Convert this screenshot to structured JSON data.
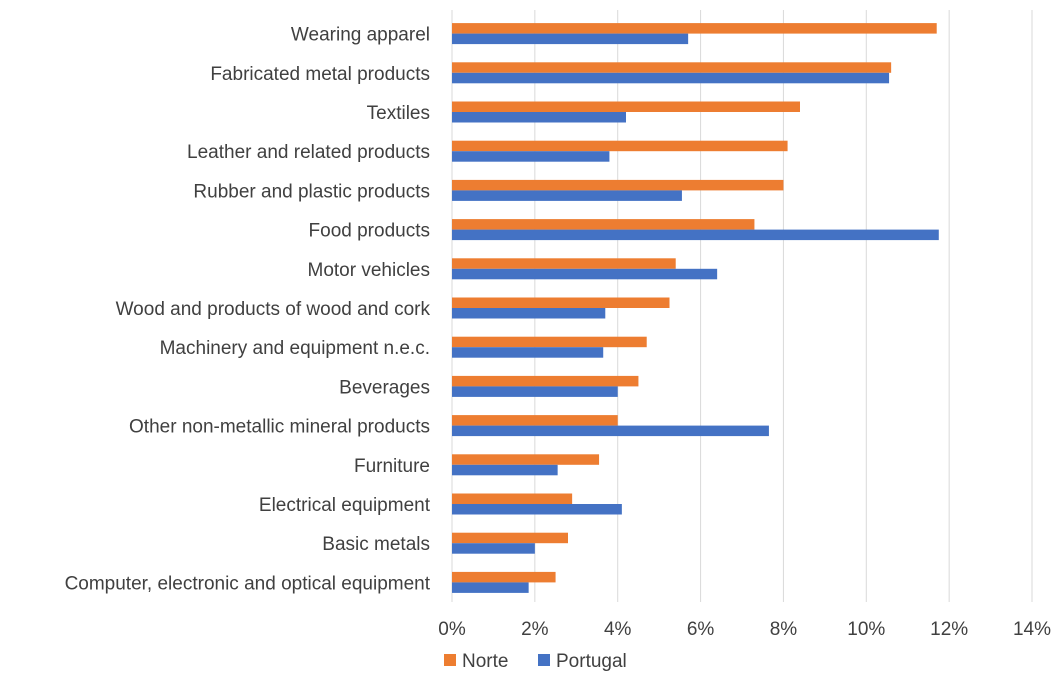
{
  "chart_data": {
    "type": "bar",
    "orientation": "horizontal",
    "categories": [
      "Wearing apparel",
      "Fabricated metal products",
      "Textiles",
      "Leather and related products",
      "Rubber and plastic products",
      "Food products",
      "Motor vehicles",
      "Wood and  products of wood and cork",
      "Machinery and equipment n.e.c.",
      "Beverages",
      "Other non-metallic mineral products",
      "Furniture",
      "Electrical equipment",
      "Basic metals",
      "Computer, electronic and optical equipment"
    ],
    "series": [
      {
        "name": "Norte",
        "color": "#ED7D31",
        "values": [
          11.7,
          10.6,
          8.4,
          8.1,
          8.0,
          7.3,
          5.4,
          5.25,
          4.7,
          4.5,
          4.0,
          3.55,
          2.9,
          2.8,
          2.5
        ]
      },
      {
        "name": "Portugal",
        "color": "#4472C4",
        "values": [
          5.7,
          10.55,
          4.2,
          3.8,
          5.55,
          11.75,
          6.4,
          3.7,
          3.65,
          4.0,
          7.65,
          2.55,
          4.1,
          2.0,
          1.85
        ]
      }
    ],
    "xlim": [
      0,
      14
    ],
    "xticks": [
      0,
      2,
      4,
      6,
      8,
      10,
      12,
      14
    ],
    "xtick_labels": [
      "0%",
      "2%",
      "4%",
      "6%",
      "8%",
      "10%",
      "12%",
      "14%"
    ],
    "grid": true,
    "legend_position": "bottom-center",
    "title": "",
    "xlabel": "",
    "ylabel": ""
  }
}
